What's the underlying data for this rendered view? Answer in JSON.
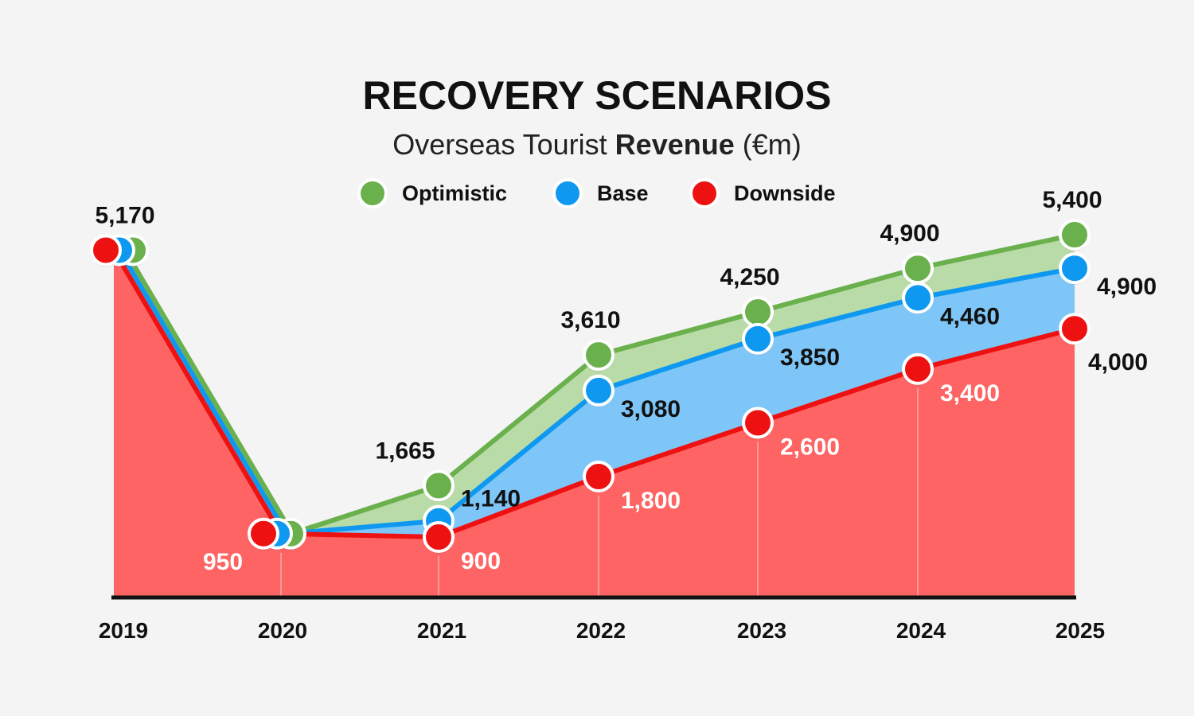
{
  "chart_data": {
    "type": "area",
    "title": "RECOVERY SCENARIOS",
    "subtitle_light": "Overseas Tourist",
    "subtitle_bold": "Revenue",
    "subtitle_unit": "(€m)",
    "xlabel": "",
    "ylabel": "",
    "x": [
      "2019",
      "2020",
      "2021",
      "2022",
      "2023",
      "2024",
      "2025"
    ],
    "ylim": [
      0,
      5500
    ],
    "grid": "vertical",
    "legend_position": "top",
    "series": [
      {
        "name": "Optimistic",
        "color": "#6ab04c",
        "fill": "#b9dba8",
        "values": [
          5170,
          950,
          1665,
          3610,
          4250,
          4900,
          5400
        ],
        "labels": [
          "5,170",
          "",
          "1,665",
          "3,610",
          "4,250",
          "4,900",
          "5,400"
        ]
      },
      {
        "name": "Base",
        "color": "#0f98f0",
        "fill": "#7ec6f7",
        "values": [
          5170,
          950,
          1140,
          3080,
          3850,
          4460,
          4900
        ],
        "labels": [
          "",
          "",
          "1,140",
          "3,080",
          "3,850",
          "4,460",
          "4,900"
        ]
      },
      {
        "name": "Downside",
        "color": "#ee1111",
        "fill": "#fd6463",
        "values": [
          5170,
          950,
          900,
          1800,
          2600,
          3400,
          4000
        ],
        "labels": [
          "",
          "950",
          "900",
          "1,800",
          "2,600",
          "3,400",
          "4,000"
        ]
      }
    ]
  }
}
